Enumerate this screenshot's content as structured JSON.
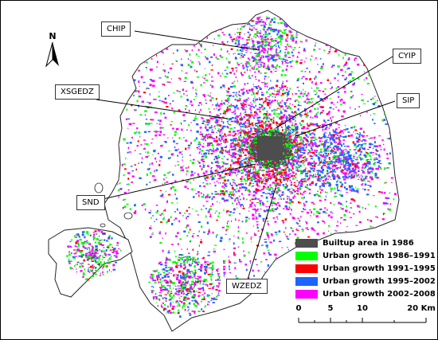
{
  "north_label": "N",
  "labels": {
    "chip": "CHIP",
    "cyip": "CYIP",
    "xsgedz": "XSGEDZ",
    "sip": "SIP",
    "snd": "SND",
    "wzedz": "WZEDZ"
  },
  "legend": [
    {
      "label": "Builtup area in 1986",
      "color": "#4d4d4d"
    },
    {
      "label": "Urban growth 1986–1991",
      "color": "#00ff00"
    },
    {
      "label": "Urban growth 1991–1995",
      "color": "#ff0000"
    },
    {
      "label": "Urban growth 1995–2002",
      "color": "#1e64ff"
    },
    {
      "label": "Urban growth 2002–2008",
      "color": "#ff00ff"
    }
  ],
  "scale": {
    "ticks": [
      "0",
      "5",
      "10",
      "20 Km"
    ]
  }
}
